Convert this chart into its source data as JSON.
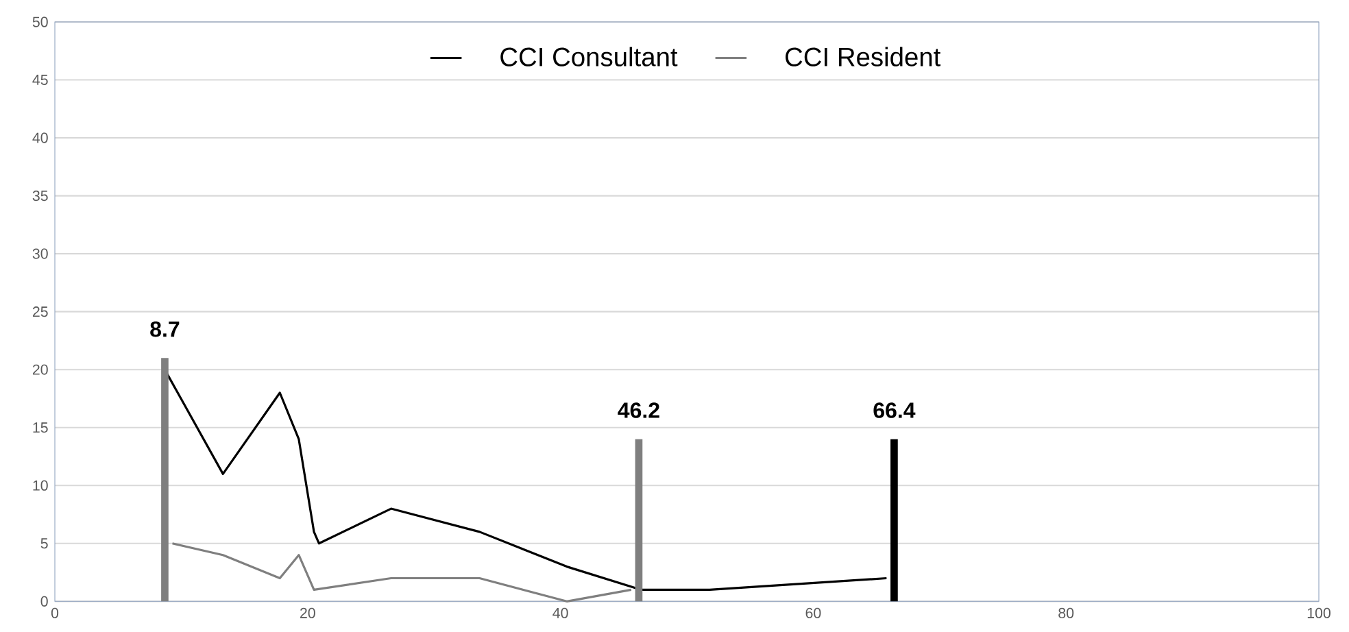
{
  "chart_data": {
    "type": "line",
    "xlim": [
      0,
      100
    ],
    "xticks": [
      0,
      20,
      40,
      60,
      80,
      100
    ],
    "ylim": [
      0,
      50
    ],
    "yticks": [
      0,
      5,
      10,
      15,
      20,
      25,
      30,
      35,
      40,
      45,
      50
    ],
    "grid": "y",
    "legend": "top",
    "marker": "none",
    "line_style": "solid",
    "series": [
      {
        "name": "CCI Consultant",
        "color": "#000000",
        "x": [
          8.7,
          13.3,
          17.8,
          19.3,
          20.5,
          20.9,
          26.6,
          33.6,
          40.5,
          46.4,
          51.8,
          65.8
        ],
        "values": [
          20,
          11,
          18,
          14,
          6,
          5,
          8,
          6,
          3,
          1,
          1,
          2
        ]
      },
      {
        "name": "CCI Resident",
        "color": "#7f7f7f",
        "x": [
          9.3,
          13.3,
          17.8,
          19.3,
          20.5,
          26.6,
          33.6,
          40.5,
          45.6
        ],
        "values": [
          5,
          4,
          2,
          4,
          1,
          2,
          2,
          0,
          1
        ]
      },
      {
        "type": "bar",
        "x": [
          8.7,
          46.2,
          66.4
        ],
        "values": [
          21,
          14,
          14
        ],
        "colors": [
          "#7f7f7f",
          "#7f7f7f",
          "#000000"
        ]
      }
    ],
    "annotations": [
      {
        "text": "8.7",
        "x": 8.7,
        "y": 21
      },
      {
        "text": "46.2",
        "x": 46.2,
        "y": 14
      },
      {
        "text": "66.4",
        "x": 66.4,
        "y": 14
      }
    ]
  }
}
